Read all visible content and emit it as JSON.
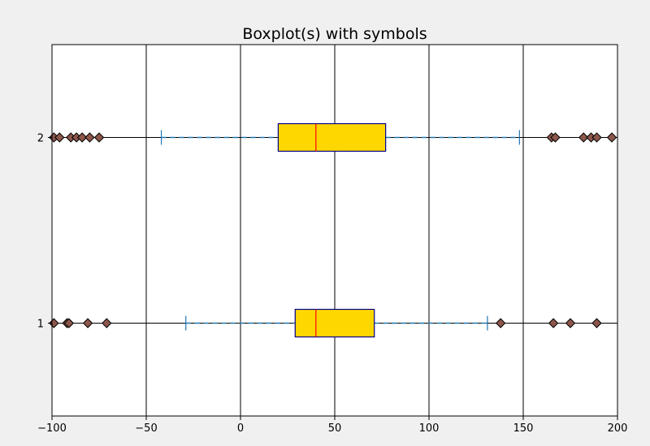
{
  "chart_data": {
    "type": "boxplot",
    "orientation": "horizontal",
    "title": "Boxplot(s) with symbols",
    "xlabel": "",
    "ylabel": "",
    "xlim": [
      -100,
      200
    ],
    "ylim": [
      0.5,
      2.5
    ],
    "x_ticks": [
      -100,
      -50,
      0,
      50,
      100,
      150,
      200
    ],
    "x_tick_labels": [
      "−100",
      "−50",
      "0",
      "50",
      "100",
      "150",
      "200"
    ],
    "y_ticks": [
      1,
      2
    ],
    "y_tick_labels": [
      "1",
      "2"
    ],
    "grid": {
      "x": true,
      "y": false
    },
    "colors": {
      "box_fill": "#ffd700",
      "box_edge": "#00008b",
      "median": "#ff0000",
      "whisker": "#1f77b4",
      "flier_fill": "#8c564b",
      "flier_edge": "#000000",
      "center_line": "#000000",
      "figure_bg": "#f0f0f0",
      "axes_bg": "#ffffff"
    },
    "series": [
      {
        "position": 1,
        "whisker_low": -29,
        "q1": 29,
        "median": 40,
        "q3": 71,
        "whisker_high": 131,
        "fliers": [
          -99,
          -92,
          -91,
          -81,
          -71,
          138,
          166,
          175,
          189
        ]
      },
      {
        "position": 2,
        "whisker_low": -42,
        "q1": 20,
        "median": 40,
        "q3": 77,
        "whisker_high": 148,
        "fliers": [
          -99,
          -96,
          -90,
          -87,
          -84,
          -80,
          -75,
          165,
          167,
          182,
          186,
          189,
          197
        ]
      }
    ]
  }
}
